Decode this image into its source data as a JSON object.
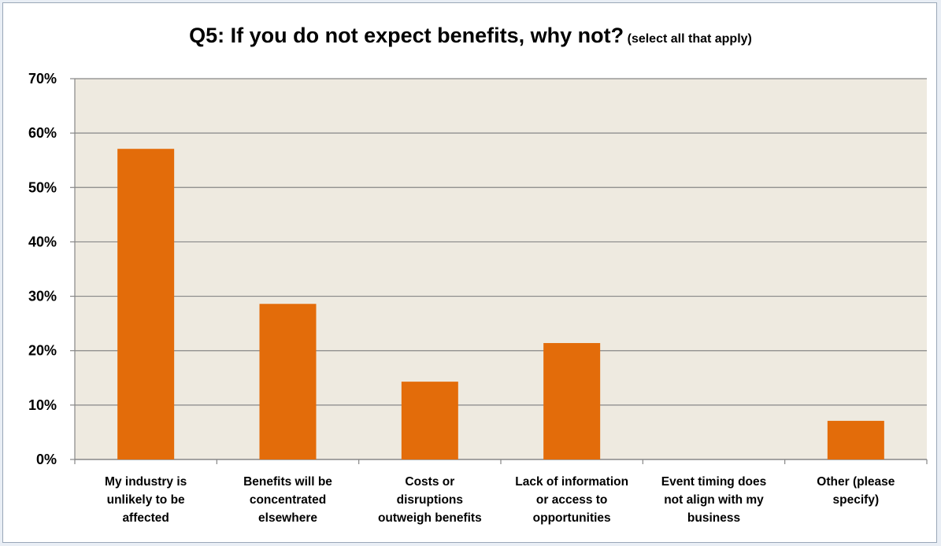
{
  "chart_data": {
    "type": "bar",
    "title": "Q5: If you do not expect benefits, why not?",
    "subtitle": "(select all that apply)",
    "categories": [
      [
        "My industry is",
        "unlikely to be",
        "affected"
      ],
      [
        "Benefits will be",
        "concentrated",
        "elsewhere"
      ],
      [
        "Costs or",
        "disruptions",
        "outweigh benefits"
      ],
      [
        "Lack of information",
        "or access to",
        "opportunities"
      ],
      [
        "Event timing does",
        "not align with my",
        "business"
      ],
      [
        "Other (please",
        "specify)"
      ]
    ],
    "values": [
      57.1,
      28.6,
      14.3,
      21.4,
      0,
      7.1
    ],
    "ylim": [
      0,
      70
    ],
    "yticks": [
      "0%",
      "10%",
      "20%",
      "30%",
      "40%",
      "50%",
      "60%",
      "70%"
    ],
    "xlabel": "",
    "ylabel": "",
    "grid": true,
    "colors": {
      "bar": "#e36c0a",
      "plot_background": "#eeeae0",
      "gridline": "#878787"
    }
  }
}
